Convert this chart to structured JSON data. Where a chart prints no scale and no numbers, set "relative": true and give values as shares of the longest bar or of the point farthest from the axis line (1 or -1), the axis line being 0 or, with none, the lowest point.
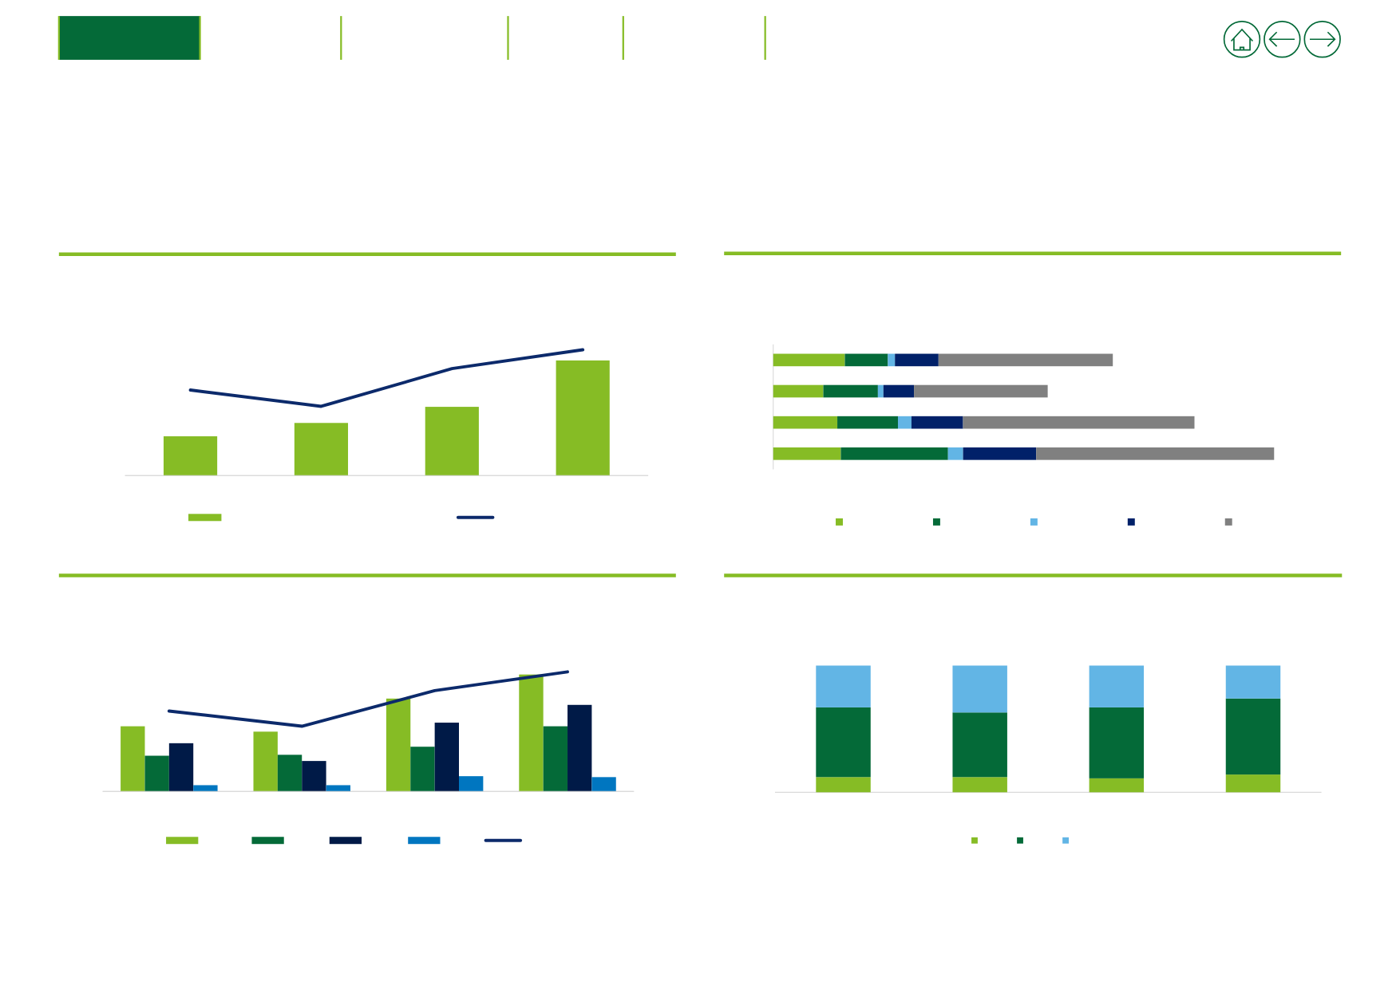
{
  "chart_data": [
    {
      "type": "bar",
      "relative": true,
      "categories": [
        null,
        null,
        null,
        null
      ],
      "series": [
        {
          "color": "#86bc25",
          "values": [
            0.341,
            0.457,
            0.597,
            1
          ]
        }
      ]
    },
    {
      "type": "line",
      "relative": true,
      "categories": [
        null,
        null,
        null,
        null
      ],
      "series": [
        {
          "color": "#0c2a6b",
          "values": [
            0.68,
            0.55,
            0.85,
            1
          ]
        }
      ]
    },
    {
      "type": "bar",
      "orientation": "horizontal",
      "stacked": true,
      "relative": true,
      "categories": [
        null,
        null,
        null,
        null
      ],
      "series": [
        {
          "color": "#86bc25",
          "values": [
            0.143,
            0.1,
            0.128,
            0.135
          ]
        },
        {
          "color": "#046a38",
          "values": [
            0.086,
            0.109,
            0.121,
            0.214
          ]
        },
        {
          "color": "#62b5e5",
          "values": [
            0.014,
            0.011,
            0.027,
            0.03
          ]
        },
        {
          "color": "#012169",
          "values": [
            0.087,
            0.061,
            0.103,
            0.146
          ]
        },
        {
          "color": "#808080",
          "values": [
            0.348,
            0.267,
            0.462,
            0.475
          ]
        }
      ]
    },
    {
      "type": "bar",
      "relative": true,
      "categories": [
        null,
        null,
        null,
        null
      ],
      "series": [
        {
          "color": "#86bc25",
          "values": [
            0.557,
            0.511,
            0.794,
            1
          ]
        },
        {
          "color": "#046a38",
          "values": [
            0.305,
            0.313,
            0.382,
            0.557
          ]
        },
        {
          "color": "#001a47",
          "values": [
            0.412,
            0.26,
            0.588,
            0.74
          ]
        },
        {
          "color": "#0076c0",
          "values": [
            0.053,
            0.053,
            0.13,
            0.122
          ]
        }
      ]
    },
    {
      "type": "line",
      "relative": true,
      "categories": [
        null,
        null,
        null,
        null
      ],
      "series": [
        {
          "color": "#0c2a6b",
          "values": [
            0.672,
            0.545,
            0.843,
            1
          ]
        }
      ]
    },
    {
      "type": "bar",
      "stacked": true,
      "relative": true,
      "categories": [
        null,
        null,
        null,
        null
      ],
      "series": [
        {
          "color": "#86bc25",
          "values": [
            0.12,
            0.12,
            0.11,
            0.14
          ]
        },
        {
          "color": "#046a38",
          "values": [
            0.55,
            0.51,
            0.56,
            0.6
          ]
        },
        {
          "color": "#62b5e5",
          "values": [
            0.33,
            0.37,
            0.33,
            0.26
          ]
        }
      ]
    }
  ]
}
